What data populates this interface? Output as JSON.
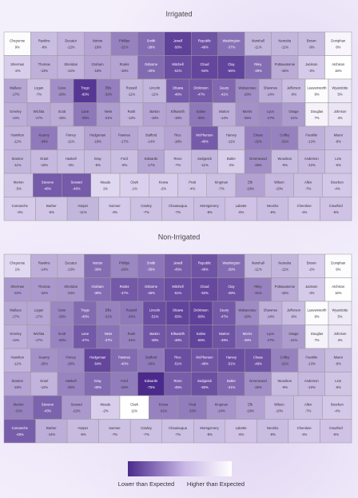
{
  "panels": [
    {
      "title": "Irrigated",
      "names": [
        "Cheyenne",
        "Rawlins",
        "Decatur",
        "Norton",
        "Phillips",
        "Smith",
        "Jewell",
        "Republic",
        "Washington",
        "Marshall",
        "Nemaha",
        "Brown",
        "Doniphan",
        "Sherman",
        "Thomas",
        "Sheridan",
        "Graham",
        "Rooks",
        "Osborne",
        "Mitchell",
        "Cloud",
        "Clay",
        "Riley",
        "Pottawatomie",
        "Jackson",
        "Atchison",
        "Wallace",
        "Logan",
        "Gove",
        "Trego",
        "Ellis",
        "Russell",
        "Lincoln",
        "Ottawa",
        "Dickinson",
        "Geary",
        "Wabaunsee",
        "Shawnee",
        "Jefferson",
        "Leavenworth",
        "Wyandotte",
        "Greeley",
        "Wichita",
        "Scott",
        "Lane",
        "Ness",
        "Rush",
        "Barton",
        "Ellsworth",
        "Saline",
        "Marion",
        "Morris",
        "Lyon",
        "Osage",
        "Douglas",
        "Johnson",
        "Hamilton",
        "Kearny",
        "Finney",
        "Hodgeman",
        "Pawnee",
        "Stafford",
        "Rice",
        "McPherson",
        "Harvey",
        "Chase",
        "Coffey",
        "Franklin",
        "Miami",
        "Stanton",
        "Grant",
        "Haskell",
        "Gray",
        "Ford",
        "Edwards",
        "Reno",
        "Sedgwick",
        "Butler",
        "Greenwood",
        "Woodson",
        "Anderson",
        "Linn",
        "Morton",
        "Stevens",
        "Seward",
        "Meade",
        "Clark",
        "Kiowa",
        "Pratt",
        "Kingman",
        "Elk",
        "Wilson",
        "Allen",
        "Bourbon",
        "Comanche",
        "Barber",
        "Harper",
        "Sumner",
        "Cowley",
        "Chautauqua",
        "Montgomery",
        "Labette",
        "Neosho",
        "Cherokee",
        "Crawford"
      ],
      "values": [
        9,
        -8,
        -12,
        -18,
        -31,
        -39,
        -56,
        -49,
        -37,
        -11,
        -11,
        -9,
        8,
        -2,
        -13,
        -12,
        -18,
        -18,
        -40,
        -51,
        -54,
        -55,
        -39,
        -15,
        -3,
        16,
        -17,
        -7,
        -26,
        -60,
        -32,
        -11,
        -11,
        -46,
        -47,
        -41,
        -26,
        -14,
        -8,
        9,
        5,
        -14,
        -17,
        -15,
        -35,
        -21,
        -12,
        -18,
        -19,
        -35,
        -14,
        -25,
        -27,
        -21,
        7,
        4,
        -12,
        -34,
        -11,
        -18,
        -17,
        -14,
        -18,
        -46,
        -11,
        -32,
        -31,
        -13,
        -8,
        -11,
        -10,
        -8,
        -9,
        -8,
        -17,
        -7,
        -11,
        -2,
        -26,
        -9,
        -10,
        -5,
        -5,
        -46,
        -46,
        1,
        -1,
        -2,
        -4,
        -7,
        -19,
        -10,
        -7,
        -4,
        -3,
        -5,
        -11,
        -3,
        -7,
        -7,
        -8,
        -6,
        -8,
        -4,
        -6
      ],
      "labels": [
        "9%",
        "-8%",
        "-12%",
        "-18%",
        "-31%",
        "-39%",
        "-56%",
        "-49%",
        "-37%",
        "-11%",
        "-11%",
        "-9%",
        "8%",
        "-2%",
        "-13%",
        "-12%",
        "-18%",
        "-18%",
        "-40%",
        "-51%",
        "-54%",
        "-55%",
        "-39%",
        "-15%",
        "-3%",
        "16%",
        "-17%",
        "-7%",
        "-26%",
        "-60%",
        "-32%",
        "-11%",
        "-11%",
        "-46%",
        "-47%",
        "-41%",
        "-26%",
        "-14%",
        "-8%",
        "9%",
        "5%",
        "-14%",
        "-17%",
        "-15%",
        "-35%",
        "-21%",
        "-12%",
        "-18%",
        "-19%",
        "-35%",
        "-14%",
        "-25%",
        "-27%",
        "-21%",
        "7%",
        "4%",
        "-12%",
        "-34%",
        "-11%",
        "-18%",
        "-17%",
        "-14%",
        "-18%",
        "-46%",
        "-11%",
        "-32%",
        "-31%",
        "-13%",
        "-8%",
        "-11%",
        "-10%",
        "-8%",
        "-9%",
        "-8%",
        "-17%",
        "-7%",
        "-11%",
        "-2%",
        "-26%",
        "-9%",
        "-10%",
        "-5%",
        "-5%",
        "-46%",
        "-46%",
        "1%",
        "-1%",
        "-2%",
        "-4%",
        "-7%",
        "-19%",
        "-10%",
        "-7%",
        "-4%",
        "-3%",
        "-5%",
        "-11%",
        "-3%",
        "-7%",
        "-7%",
        "-8%",
        "-6%",
        "-8%",
        "-4%",
        "-6%"
      ]
    },
    {
      "title": "Non-Irrigated",
      "names": [
        "Cheyenne",
        "Rawlins",
        "Decatur",
        "Norton",
        "Phillips",
        "Smith",
        "Jewell",
        "Republic",
        "Washington",
        "Marshall",
        "Nemaha",
        "Brown",
        "Doniphan",
        "Sherman",
        "Thomas",
        "Sheridan",
        "Graham",
        "Rooks",
        "Osborne",
        "Mitchell",
        "Cloud",
        "Clay",
        "Riley",
        "Pottawatomie",
        "Jackson",
        "Atchison",
        "Wallace",
        "Logan",
        "Gove",
        "Trego",
        "Ellis",
        "Russell",
        "Lincoln",
        "Ottawa",
        "Dickinson",
        "Geary",
        "Wabaunsee",
        "Shawnee",
        "Jefferson",
        "Leavenworth",
        "Wyandotte",
        "Greeley",
        "Wichita",
        "Scott",
        "Lane",
        "Ness",
        "Rush",
        "Barton",
        "Ellsworth",
        "Saline",
        "Marion",
        "Morris",
        "Lyon",
        "Osage",
        "Douglas",
        "Johnson",
        "Hamilton",
        "Kearny",
        "Finney",
        "Hodgeman",
        "Pawnee",
        "Stafford",
        "Rice",
        "McPherson",
        "Harvey",
        "Chase",
        "Coffey",
        "Franklin",
        "Miami",
        "Stanton",
        "Grant",
        "Haskell",
        "Gray",
        "Ford",
        "Edwards",
        "Reno",
        "Sedgwick",
        "Butler",
        "Greenwood",
        "Woodson",
        "Anderson",
        "Linn",
        "Morton",
        "Stevens",
        "Seward",
        "Meade",
        "Clark",
        "Kiowa",
        "Pratt",
        "Kingman",
        "Elk",
        "Wilson",
        "Allen",
        "Bourbon",
        "Comanche",
        "Barber",
        "Harper",
        "Sumner",
        "Cowley",
        "Chautauqua",
        "Montgomery",
        "Labette",
        "Neosho",
        "Cherokee",
        "Crawford"
      ],
      "values": [
        1,
        -14,
        -13,
        -39,
        -29,
        -36,
        -45,
        -49,
        -39,
        -11,
        -11,
        -2,
        9,
        -22,
        -22,
        -23,
        -39,
        -47,
        -46,
        -51,
        -53,
        -49,
        -31,
        -15,
        -3,
        16,
        -17,
        -17,
        -29,
        -40,
        -31,
        -34,
        -51,
        -55,
        -56,
        -47,
        -28,
        -14,
        -8,
        9,
        5,
        -14,
        -17,
        -30,
        -47,
        -37,
        -31,
        -48,
        -48,
        -55,
        -49,
        -38,
        -27,
        -21,
        7,
        4,
        -12,
        -25,
        -28,
        -54,
        -40,
        -34,
        -51,
        -48,
        -51,
        -49,
        -31,
        -13,
        -8,
        -18,
        -12,
        -30,
        -40,
        -33,
        -75,
        -45,
        -50,
        -41,
        -26,
        -9,
        -10,
        -5,
        -31,
        -43,
        -22,
        -2,
        11,
        -31,
        -33,
        -24,
        -19,
        -10,
        -7,
        -4,
        -45,
        -14,
        -9,
        -7,
        -7,
        -7,
        -8,
        -6,
        -8,
        -4,
        -6
      ],
      "labels": [
        "1%",
        "-14%",
        "-13%",
        "-39%",
        "-29%",
        "-36%",
        "-45%",
        "-49%",
        "-39%",
        "-11%",
        "-11%",
        "-2%",
        "9%",
        "-22%",
        "-22%",
        "-23%",
        "-39%",
        "-47%",
        "-46%",
        "-51%",
        "-53%",
        "-49%",
        "-31%",
        "-15%",
        "-3%",
        "16%",
        "-17%",
        "-17%",
        "-29%",
        "-40%",
        "-31%",
        "-34%",
        "-51%",
        "-55%",
        "-56%",
        "-47%",
        "-28%",
        "-14%",
        "-8%",
        "9%",
        "5%",
        "-14%",
        "-17%",
        "-30%",
        "-47%",
        "-37%",
        "-31%",
        "-48%",
        "-48%",
        "-55%",
        "-49%",
        "-38%",
        "-27%",
        "-21%",
        "7%",
        "4%",
        "-12%",
        "-25%",
        "-28%",
        "-54%",
        "-40%",
        "-34%",
        "-51%",
        "-48%",
        "-51%",
        "-49%",
        "-31%",
        "-13%",
        "-8%",
        "-18%",
        "-12%",
        "-30%",
        "-40%",
        "-33%",
        "-75%",
        "-45%",
        "-50%",
        "-41%",
        "-26%",
        "-9%",
        "-10%",
        "-5%",
        "-31%",
        "-43%",
        "-22%",
        "-2%",
        "11%",
        "-31%",
        "-33%",
        "-24%",
        "-19%",
        "-10%",
        "-7%",
        "-4%",
        "-45%",
        "-14%",
        "-9%",
        "-7%",
        "-7%",
        "-7%",
        "-8%",
        "-6%",
        "-8%",
        "-4%",
        "-6%"
      ]
    }
  ],
  "legend": {
    "low": "Lower than Expected",
    "high": "Higher than Expected"
  }
}
